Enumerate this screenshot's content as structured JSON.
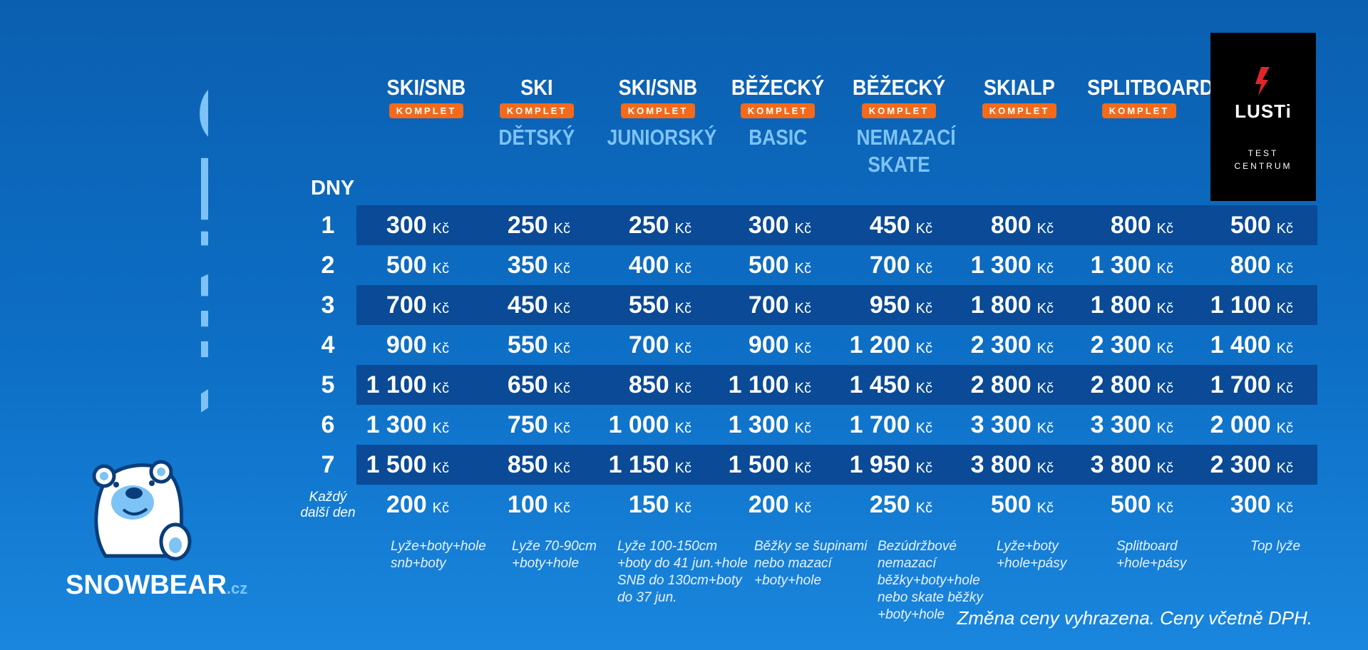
{
  "title": "CENÍK",
  "brand": {
    "name": "SNOWBEAR",
    "tld": ".cz"
  },
  "lusti": {
    "name": "LUSTi",
    "sub1": "TEST",
    "sub2": "CENTRUM"
  },
  "days_label": "DNY",
  "badge_label": "KOMPLET",
  "columns": [
    {
      "title": "SKI/SNB",
      "badge": true,
      "subtitle": "",
      "desc": [
        "Lyže+boty+hole",
        "snb+boty"
      ]
    },
    {
      "title": "SKI",
      "badge": true,
      "subtitle": "DĚTSKÝ",
      "desc": [
        "Lyže 70-90cm",
        "+boty+hole"
      ]
    },
    {
      "title": "SKI/SNB",
      "badge": true,
      "subtitle": "JUNIORSKÝ",
      "desc": [
        "Lyže 100-150cm",
        "+boty do 41 jun.+hole",
        "SNB do 130cm+boty",
        "do 37 jun."
      ]
    },
    {
      "title": "BĚŽECKÝ",
      "badge": true,
      "subtitle": "BASIC",
      "desc": [
        "Běžky se šupinami",
        "nebo mazací",
        "+boty+hole"
      ]
    },
    {
      "title": "BĚŽECKÝ",
      "badge": true,
      "subtitle": "NEMAZACÍ SKATE",
      "desc": [
        "Bezúdržbové",
        "nemazací",
        "běžky+boty+hole",
        "nebo skate běžky",
        "+boty+hole"
      ]
    },
    {
      "title": "SKIALP",
      "badge": true,
      "subtitle": "",
      "desc": [
        "Lyže+boty",
        "+hole+pásy"
      ]
    },
    {
      "title": "SPLITBOARD",
      "badge": true,
      "subtitle": "",
      "desc": [
        "Splitboard",
        "+hole+pásy"
      ]
    },
    {
      "title": "",
      "badge": false,
      "subtitle": "",
      "desc": [
        "Top lyže"
      ]
    }
  ],
  "currency": "Kč",
  "rows": [
    {
      "day": "1",
      "prices": [
        "300",
        "250",
        "250",
        "300",
        "450",
        "800",
        "800",
        "500"
      ]
    },
    {
      "day": "2",
      "prices": [
        "500",
        "350",
        "400",
        "500",
        "700",
        "1 300",
        "1 300",
        "800"
      ]
    },
    {
      "day": "3",
      "prices": [
        "700",
        "450",
        "550",
        "700",
        "950",
        "1 800",
        "1 800",
        "1 100"
      ]
    },
    {
      "day": "4",
      "prices": [
        "900",
        "550",
        "700",
        "900",
        "1 200",
        "2 300",
        "2 300",
        "1 400"
      ]
    },
    {
      "day": "5",
      "prices": [
        "1 100",
        "650",
        "850",
        "1 100",
        "1 450",
        "2 800",
        "2 800",
        "1 700"
      ]
    },
    {
      "day": "6",
      "prices": [
        "1 300",
        "750",
        "1 000",
        "1 300",
        "1 700",
        "3 300",
        "3 300",
        "2 000"
      ]
    },
    {
      "day": "7",
      "prices": [
        "1 500",
        "850",
        "1 150",
        "1 500",
        "1 950",
        "3 800",
        "3 800",
        "2 300"
      ]
    }
  ],
  "next_day": {
    "label1": "Každý",
    "label2": "další den",
    "prices": [
      "200",
      "100",
      "150",
      "200",
      "250",
      "500",
      "500",
      "300"
    ]
  },
  "note": "Změna ceny vyhrazena. Ceny včetně DPH."
}
